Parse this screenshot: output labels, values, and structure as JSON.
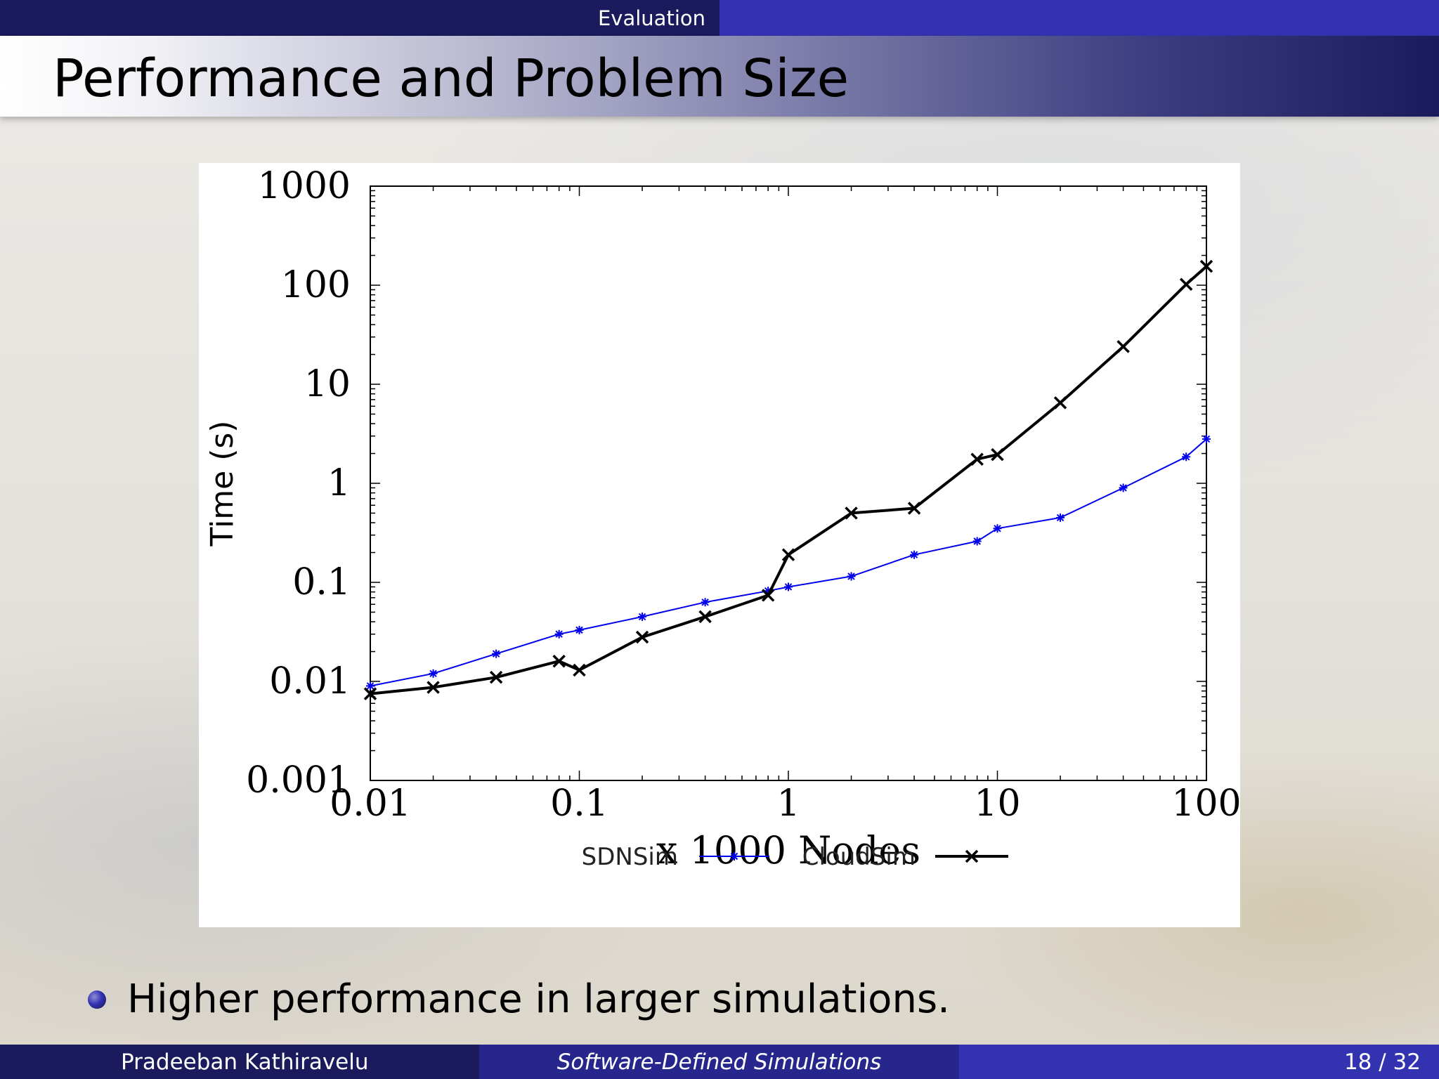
{
  "header": {
    "section": "Evaluation",
    "title": "Performance and Problem Size"
  },
  "bullets": [
    "Higher performance in larger simulations."
  ],
  "footer": {
    "author": "Pradeeban Kathiravelu",
    "talk_title": "Software-Defined Simulations",
    "page": "18 / 32"
  },
  "colors": {
    "sdnsim": "#0000ee",
    "cloudsim": "#000000",
    "dark_bar": "#1a1a5c",
    "mid_bar": "#26268c",
    "light_bar": "#3333b2"
  },
  "chart_data": {
    "type": "line",
    "xlabel": "x 1000 Nodes",
    "ylabel": "Time (s)",
    "xscale": "log",
    "yscale": "log",
    "xlim": [
      0.01,
      100
    ],
    "ylim": [
      0.001,
      1000
    ],
    "x_tick_labels": [
      "0.01",
      "0.1",
      "1",
      "10",
      "100"
    ],
    "y_tick_labels": [
      "0.001",
      "0.01",
      "0.1",
      "1",
      "10",
      "100",
      "1000"
    ],
    "legend_position": "bottom",
    "series": [
      {
        "name": "SDNSim",
        "marker": "asterisk",
        "color": "#0000ee",
        "x": [
          0.01,
          0.02,
          0.04,
          0.08,
          0.1,
          0.2,
          0.4,
          0.8,
          1,
          2,
          4,
          8,
          10,
          20,
          40,
          80,
          100
        ],
        "y": [
          0.009,
          0.012,
          0.019,
          0.03,
          0.033,
          0.045,
          0.063,
          0.082,
          0.09,
          0.115,
          0.19,
          0.26,
          0.35,
          0.45,
          0.9,
          1.85,
          2.8
        ]
      },
      {
        "name": "CloudSim",
        "marker": "x",
        "color": "#000000",
        "x": [
          0.01,
          0.02,
          0.04,
          0.08,
          0.1,
          0.2,
          0.4,
          0.8,
          1,
          2,
          4,
          8,
          10,
          20,
          40,
          80,
          100
        ],
        "y": [
          0.0075,
          0.0087,
          0.011,
          0.016,
          0.013,
          0.028,
          0.045,
          0.074,
          0.19,
          0.5,
          0.56,
          1.75,
          1.95,
          6.5,
          24,
          102,
          155
        ]
      }
    ]
  }
}
